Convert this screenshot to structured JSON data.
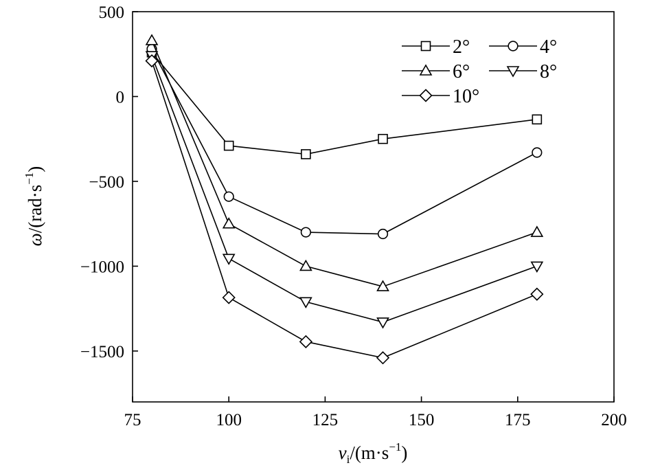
{
  "chart_data": {
    "type": "line",
    "xlabel": {
      "main": "v",
      "sub": "i",
      "rest": "/(m·s",
      "sup": "−1",
      "close": ")"
    },
    "ylabel": {
      "main": "ω",
      "rest": "/(rad·s",
      "sup": "−1",
      "close": ")"
    },
    "xlim": [
      75,
      200
    ],
    "ylim": [
      -1800,
      500
    ],
    "xticks": [
      75,
      100,
      125,
      150,
      175,
      200
    ],
    "xtick_labels": [
      "75",
      "100",
      "125",
      "150",
      "175",
      "200"
    ],
    "yticks": [
      500,
      0,
      -500,
      -1000,
      -1500
    ],
    "ytick_labels": [
      "500",
      "0",
      "−500",
      "−1000",
      "−1500"
    ],
    "grid": false,
    "legend_position": "top-right",
    "x": [
      80,
      100,
      120,
      140,
      180
    ],
    "series": [
      {
        "name": "2°",
        "marker": "square",
        "values": [
          260,
          -290,
          -340,
          -250,
          -135
        ]
      },
      {
        "name": "4°",
        "marker": "circle",
        "values": [
          280,
          -590,
          -800,
          -810,
          -330
        ]
      },
      {
        "name": "6°",
        "marker": "triangle-up",
        "values": [
          330,
          -750,
          -1000,
          -1120,
          -800
        ]
      },
      {
        "name": "8°",
        "marker": "triangle-down",
        "values": [
          240,
          -955,
          -1210,
          -1330,
          -1000
        ]
      },
      {
        "name": "10°",
        "marker": "diamond",
        "values": [
          210,
          -1185,
          -1445,
          -1540,
          -1165
        ]
      }
    ]
  }
}
